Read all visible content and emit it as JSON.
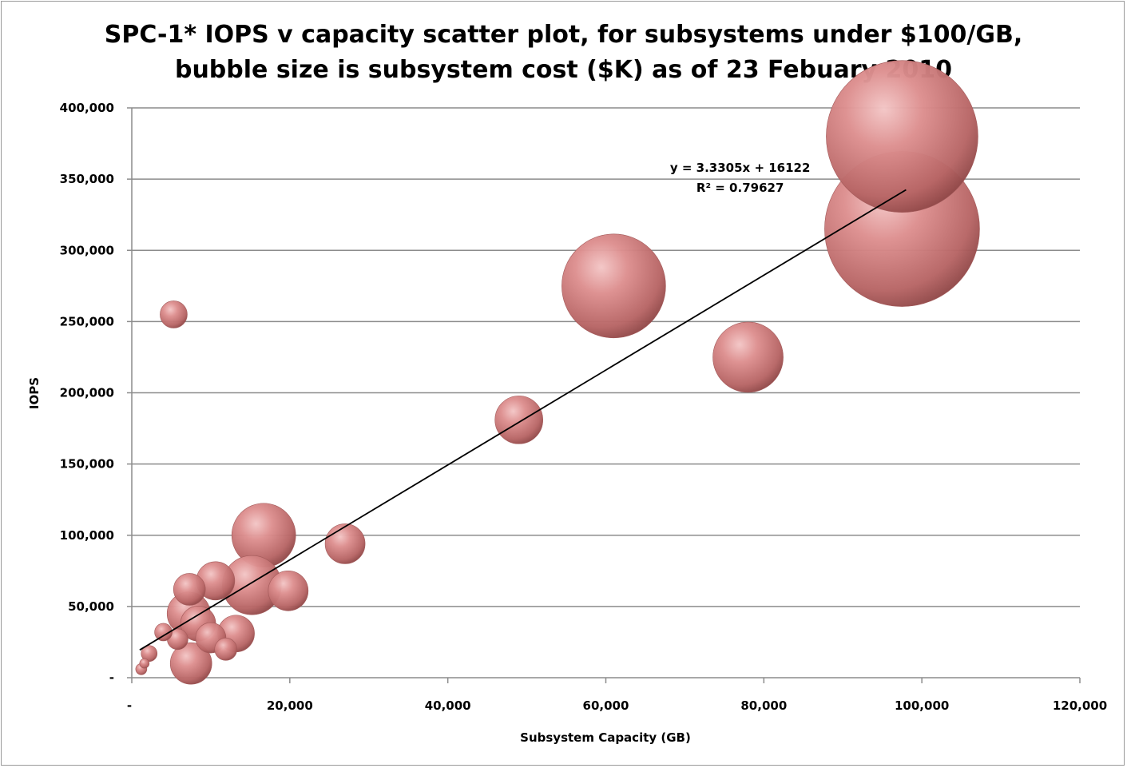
{
  "chart_data": {
    "type": "bubble",
    "title_lines": [
      "SPC-1* IOPS v capacity scatter plot, for subsystems under $100/GB,",
      "bubble size is subsystem cost ($K) as of 23 Febuary 2010"
    ],
    "xlabel": "Subsystem Capacity (GB)",
    "ylabel": "IOPS",
    "xlim": [
      0,
      120000
    ],
    "ylim": [
      0,
      400000
    ],
    "x_ticks": [
      0,
      20000,
      40000,
      60000,
      80000,
      100000,
      120000
    ],
    "x_tick_labels": [
      "-",
      "20,000",
      "40,000",
      "60,000",
      "80,000",
      "100,000",
      "120,000"
    ],
    "y_ticks": [
      0,
      50000,
      100000,
      150000,
      200000,
      250000,
      300000,
      350000,
      400000
    ],
    "y_tick_labels": [
      "-",
      "50,000",
      "100,000",
      "150,000",
      "200,000",
      "250,000",
      "300,000",
      "350,000",
      "400,000"
    ],
    "grid": "horizontal",
    "bubble_color": "#d98080",
    "series": [
      {
        "points": [
          {
            "x": 97500,
            "y": 380000,
            "size": 95
          },
          {
            "x": 97500,
            "y": 315000,
            "size": 97
          },
          {
            "x": 61000,
            "y": 275000,
            "size": 65
          },
          {
            "x": 78000,
            "y": 225000,
            "size": 44
          },
          {
            "x": 49000,
            "y": 181000,
            "size": 30
          },
          {
            "x": 5300,
            "y": 255000,
            "size": 17
          },
          {
            "x": 16700,
            "y": 100000,
            "size": 40
          },
          {
            "x": 27000,
            "y": 94000,
            "size": 25
          },
          {
            "x": 19800,
            "y": 61000,
            "size": 25
          },
          {
            "x": 15200,
            "y": 65000,
            "size": 37
          },
          {
            "x": 10600,
            "y": 68000,
            "size": 24
          },
          {
            "x": 7300,
            "y": 62000,
            "size": 20
          },
          {
            "x": 7200,
            "y": 45000,
            "size": 27
          },
          {
            "x": 8400,
            "y": 38000,
            "size": 22
          },
          {
            "x": 10000,
            "y": 28000,
            "size": 19
          },
          {
            "x": 11900,
            "y": 20000,
            "size": 14
          },
          {
            "x": 13200,
            "y": 31000,
            "size": 23
          },
          {
            "x": 5800,
            "y": 27000,
            "size": 13
          },
          {
            "x": 4000,
            "y": 32000,
            "size": 11
          },
          {
            "x": 7500,
            "y": 10000,
            "size": 26
          },
          {
            "x": 2200,
            "y": 17000,
            "size": 10
          },
          {
            "x": 1600,
            "y": 10000,
            "size": 6
          },
          {
            "x": 1200,
            "y": 6000,
            "size": 7
          }
        ]
      }
    ],
    "trendline": {
      "slope": 3.3305,
      "intercept": 16122,
      "x_range": [
        1000,
        98000
      ],
      "equation_text": "y = 3.3305x + 16122",
      "r2_text": "R² = 0.79627",
      "label_at": [
        77000,
        355000
      ]
    }
  }
}
